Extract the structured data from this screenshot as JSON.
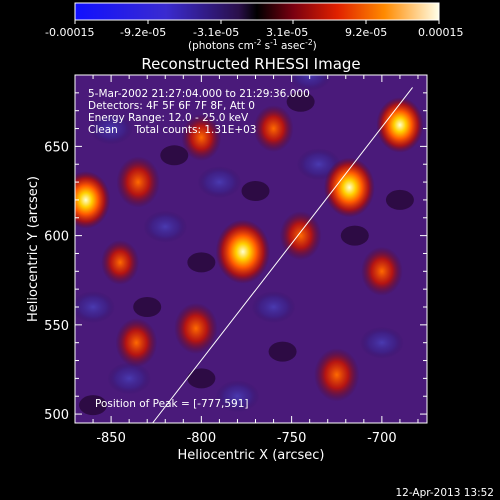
{
  "chart_data": {
    "type": "heatmap",
    "title": "Reconstructed RHESSI Image",
    "xlabel": "Heliocentric X (arcsec)",
    "ylabel": "Heliocentric Y (arcsec)",
    "xlim": [
      -870,
      -675
    ],
    "ylim": [
      495,
      690
    ],
    "xticks": [
      -850,
      -800,
      -750,
      -700
    ],
    "yticks": [
      500,
      550,
      600,
      650
    ],
    "colorbar": {
      "range": [
        -0.00015,
        0.00015
      ],
      "tick_labels": [
        "-0.00015",
        "-9.2e-05",
        "-3.1e-05",
        "3.1e-05",
        "9.2e-05",
        "0.00015"
      ],
      "units": "(photons cm",
      "units_sup1": "-2",
      "units_mid": " s",
      "units_sup2": "-1",
      "units_mid2": " asec",
      "units_sup3": "-2",
      "units_end": ")"
    },
    "annotations": {
      "time_range": "5-Mar-2002 21:27:04.000 to 21:29:36.000",
      "detectors": "Detectors: 4F 5F 6F 7F 8F, Att 0",
      "energy": "Energy Range: 12.0 - 25.0 keV",
      "clean": "Clean     Total counts: 1.31E+03",
      "peak": "Position of Peak = [-777,591]"
    },
    "limb_line": {
      "x": [
        -827,
        -683
      ],
      "y": [
        495,
        683
      ]
    },
    "sources": [
      {
        "x": -777,
        "y": 591,
        "value": 0.00015
      },
      {
        "x": -718,
        "y": 627,
        "value": 0.00013
      },
      {
        "x": -864,
        "y": 620,
        "value": 0.00012
      },
      {
        "x": -835,
        "y": 630,
        "value": 9e-05
      },
      {
        "x": -690,
        "y": 662,
        "value": 0.00011
      },
      {
        "x": -803,
        "y": 548,
        "value": 9e-05
      },
      {
        "x": -836,
        "y": 540,
        "value": 8e-05
      },
      {
        "x": -725,
        "y": 522,
        "value": 0.0001
      },
      {
        "x": -745,
        "y": 600,
        "value": 8e-05
      },
      {
        "x": -800,
        "y": 655,
        "value": 7e-05
      },
      {
        "x": -760,
        "y": 660,
        "value": 7e-05
      },
      {
        "x": -700,
        "y": 580,
        "value": 8e-05
      },
      {
        "x": -845,
        "y": 585,
        "value": 6e-05
      }
    ]
  },
  "footer": {
    "date": "12-Apr-2013 13:52"
  }
}
